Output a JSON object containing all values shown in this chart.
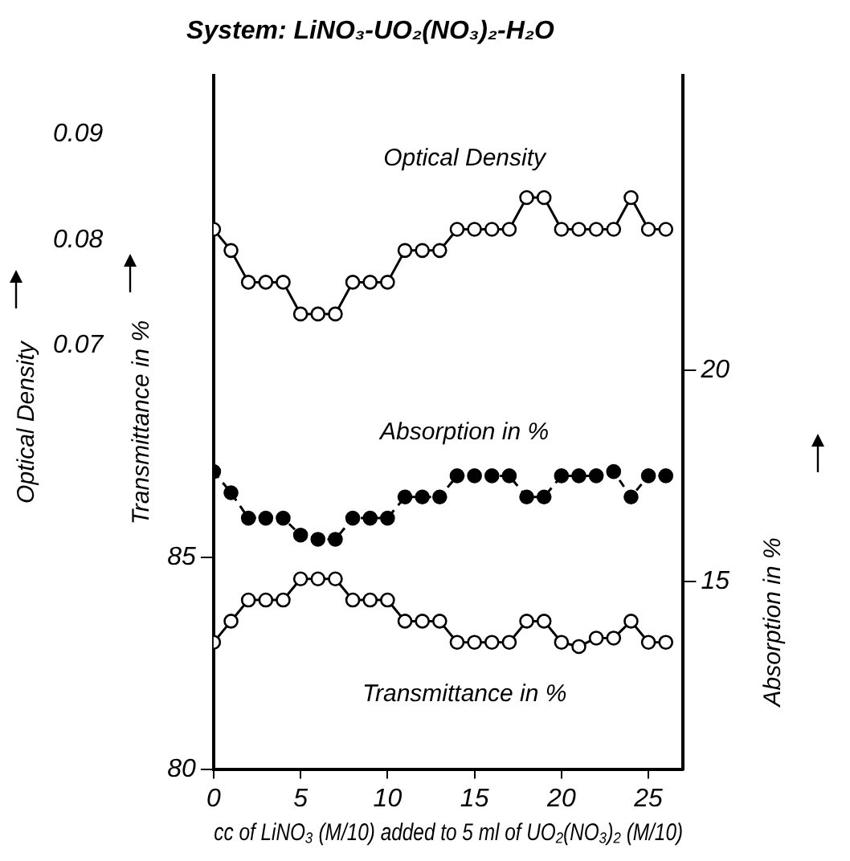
{
  "chart_data": {
    "type": "line",
    "title": "System: LiNO₃-UO₂(NO₃)₂-H₂O",
    "xlabel": "cc of LiNO₃ (M/10) added to 5 ml of UO₂(NO₃)₂ (M/10)",
    "ylabel": "Transmittance in %",
    "y2label": "Optical Density",
    "y3label": "Absorption in %",
    "x": [
      0,
      1,
      2,
      3,
      4,
      5,
      6,
      7,
      8,
      9,
      10,
      11,
      12,
      13,
      14,
      15,
      16,
      17,
      18,
      19,
      20,
      21,
      22,
      23,
      24,
      25,
      26
    ],
    "xlim": [
      0,
      27
    ],
    "xticks": [
      0,
      5,
      10,
      15,
      20,
      25
    ],
    "ylim": [
      80,
      96.4
    ],
    "yticks": [
      80,
      85
    ],
    "y2lim": [
      0.03,
      0.0955
    ],
    "y2ticks": [
      0.07,
      0.08,
      0.09
    ],
    "y3lim": [
      10.57,
      26.95
    ],
    "y3ticks": [
      15,
      20
    ],
    "legend": false,
    "grid": false,
    "series": [
      {
        "name": "Optical Density",
        "color": "#000000",
        "axis": "y2",
        "marker": "circle",
        "line_style": "solid",
        "values": [
          0.081,
          0.079,
          0.076,
          0.076,
          0.076,
          0.073,
          0.073,
          0.073,
          0.076,
          0.076,
          0.076,
          0.079,
          0.079,
          0.079,
          0.081,
          0.081,
          0.081,
          0.081,
          0.084,
          0.084,
          0.081,
          0.081,
          0.081,
          0.081,
          0.084,
          0.081,
          0.081
        ]
      },
      {
        "name": "Absorption in %",
        "color": "#000000",
        "axis": "y3",
        "marker": "circle",
        "line_style": "dashed",
        "values": [
          17.6,
          17.1,
          16.5,
          16.5,
          16.5,
          16.1,
          16.0,
          16.0,
          16.5,
          16.5,
          16.5,
          17.0,
          17.0,
          17.0,
          17.5,
          17.5,
          17.5,
          17.5,
          17.0,
          17.0,
          17.5,
          17.5,
          17.5,
          17.6,
          17.0,
          17.5,
          17.5
        ]
      },
      {
        "name": "Transmittance in %",
        "color": "#000000",
        "axis": "y",
        "marker": "circle",
        "line_style": "solid",
        "values": [
          83.0,
          83.5,
          84.0,
          84.0,
          84.0,
          84.5,
          84.5,
          84.5,
          84.0,
          84.0,
          84.0,
          83.5,
          83.5,
          83.5,
          83.0,
          83.0,
          83.0,
          83.0,
          83.5,
          83.5,
          83.0,
          82.9,
          83.1,
          83.1,
          83.5,
          83.0,
          83.0
        ]
      }
    ]
  }
}
